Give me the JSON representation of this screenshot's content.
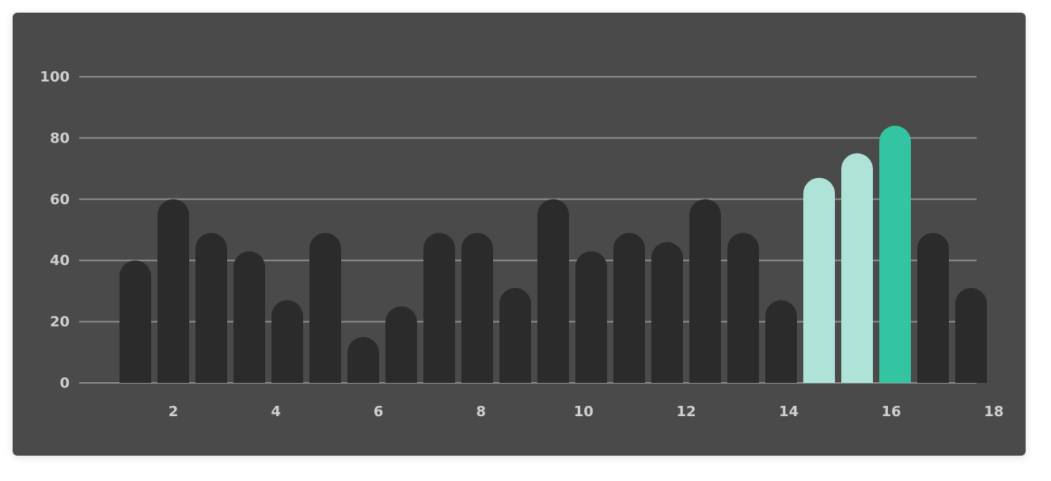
{
  "chart_data": {
    "type": "bar",
    "title": "",
    "xlabel": "",
    "ylabel": "",
    "ylim": [
      0,
      100
    ],
    "yticks": [
      0,
      20,
      40,
      60,
      80,
      100
    ],
    "xtick_labels": [
      "2",
      "4",
      "6",
      "8",
      "10",
      "12",
      "14",
      "16",
      "18"
    ],
    "values": [
      40,
      60,
      49,
      43,
      27,
      49,
      15,
      25,
      49,
      49,
      31,
      60,
      43,
      49,
      46,
      60,
      49,
      27,
      67,
      75,
      84,
      49,
      31
    ],
    "grid": true,
    "colors": {
      "background": "#4a4a4a",
      "bar": "#2b2b2b",
      "highlight_light": "#b0e3d8",
      "highlight_strong": "#33c4a1",
      "grid": "#8a8a8a",
      "tick_text": "#cfcfcf"
    },
    "bar_colors": [
      "bar",
      "bar",
      "bar",
      "bar",
      "bar",
      "bar",
      "bar",
      "bar",
      "bar",
      "bar",
      "bar",
      "bar",
      "bar",
      "bar",
      "bar",
      "bar",
      "bar",
      "bar",
      "highlight_light",
      "highlight_light",
      "highlight_strong",
      "bar",
      "bar"
    ]
  }
}
